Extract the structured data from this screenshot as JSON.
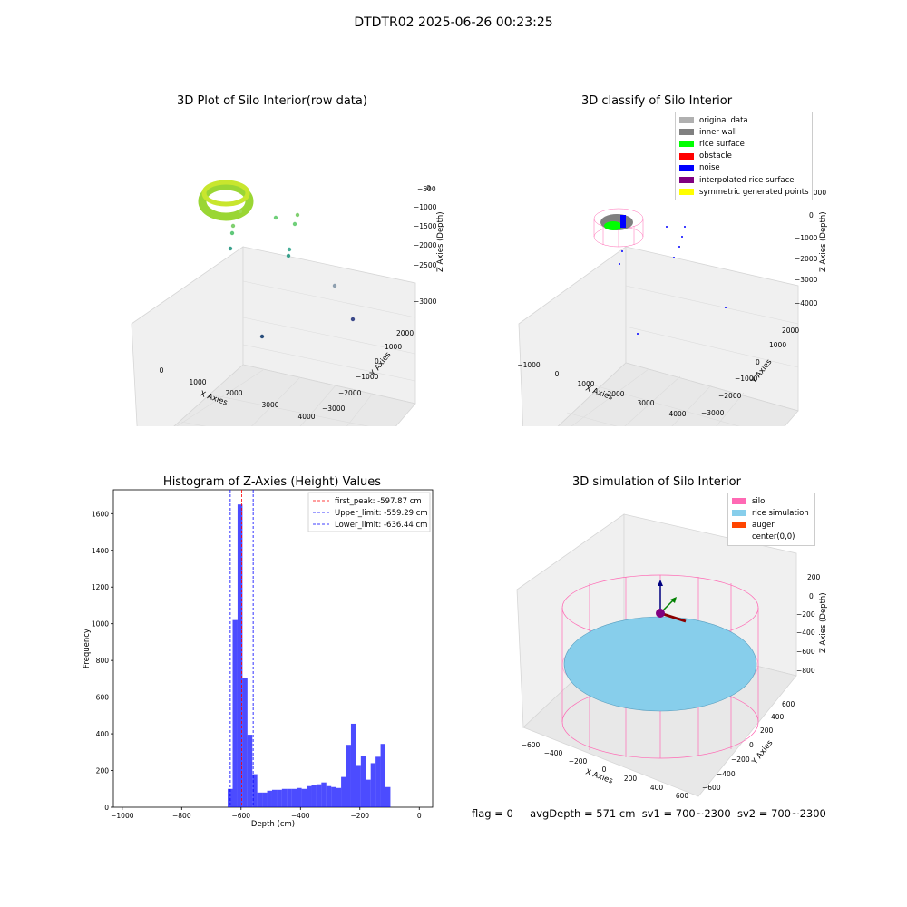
{
  "figure": {
    "title": "DTDTR02 2025-06-26 00:23:25",
    "footer": {
      "flag": "flag = 0",
      "avg_depth": "avgDepth = 571 cm",
      "sv1": "sv1 = 700~2300",
      "sv2": "sv2 = 700~2300"
    }
  },
  "panels": {
    "raw": {
      "title": "3D Plot of Silo Interior(row data)",
      "xlabel": "X Axies",
      "ylabel": "Y Axies",
      "zlabel": "Z Axies (Depth)",
      "x_ticks": [
        "0",
        "1000",
        "2000",
        "3000",
        "4000"
      ],
      "y_ticks": [
        "−3000",
        "−2000",
        "−1000",
        "0",
        "1000",
        "2000"
      ],
      "z_ticks": [
        "−3000",
        "−2500",
        "−2000",
        "−1500",
        "−1000",
        "−500",
        "0"
      ]
    },
    "classify": {
      "title": "3D classify of Silo Interior",
      "xlabel": "X Axies",
      "ylabel": "Y Axies",
      "zlabel": "Z Axies (Depth)",
      "x_ticks": [
        "−1000",
        "0",
        "1000",
        "2000",
        "3000",
        "4000"
      ],
      "y_ticks": [
        "−3000",
        "−2000",
        "−1000",
        "0",
        "1000",
        "2000"
      ],
      "z_ticks": [
        "−4000",
        "−3000",
        "−2000",
        "−1000",
        "0",
        "1000"
      ],
      "legend": [
        {
          "label": "original data",
          "color": "#b0b0b0"
        },
        {
          "label": "inner wall",
          "color": "#808080"
        },
        {
          "label": "rice surface",
          "color": "#00ff00"
        },
        {
          "label": "obstacle",
          "color": "#ff0000"
        },
        {
          "label": "noise",
          "color": "#0000ff"
        },
        {
          "label": "interpolated rice surface",
          "color": "#800080"
        },
        {
          "label": "symmetric generated points",
          "color": "#ffff00"
        }
      ]
    },
    "simulation": {
      "title": "3D simulation of Silo Interior",
      "xlabel": "X Axies",
      "ylabel": "Y Axies",
      "zlabel": "Z Axies (Depth)",
      "x_ticks": [
        "−600",
        "−400",
        "−200",
        "0",
        "200",
        "400",
        "600"
      ],
      "y_ticks": [
        "−600",
        "−400",
        "−200",
        "0",
        "200",
        "400",
        "600"
      ],
      "z_ticks": [
        "−800",
        "−600",
        "−400",
        "−200",
        "0",
        "200"
      ],
      "legend": [
        {
          "label": "silo",
          "color": "#ff69b4"
        },
        {
          "label": "rice simulation",
          "color": "#87ceeb"
        },
        {
          "label": "auger",
          "color": "#ff4500"
        },
        {
          "label": "center(0,0)",
          "color": "#ffffff"
        }
      ]
    }
  },
  "chart_data": [
    {
      "type": "bar",
      "title": "Histogram of Z-Axies (Height) Values",
      "xlabel": "Depth (cm)",
      "ylabel": "Frequency",
      "xlim": [
        -1030,
        45
      ],
      "ylim": [
        0,
        1730
      ],
      "x_ticks": [
        -1000,
        -800,
        -600,
        -400,
        -200,
        0
      ],
      "y_ticks": [
        0,
        200,
        400,
        600,
        800,
        1000,
        1200,
        1400,
        1600
      ],
      "bar_color": "#0000ff",
      "bin_width": 16.6,
      "bin_left_edges": [
        -645,
        -628.4,
        -611.8,
        -595.2,
        -578.6,
        -562,
        -545.4,
        -528.8,
        -512.2,
        -495.6,
        -479,
        -462.4,
        -445.8,
        -429.2,
        -412.6,
        -396,
        -379.4,
        -362.8,
        -346.2,
        -329.6,
        -313,
        -296.4,
        -279.8,
        -263.2,
        -246.6,
        -230,
        -213.4,
        -196.8,
        -180.2,
        -163.6,
        -147,
        -130.4,
        -113.8,
        -97.2,
        -80.6,
        -64,
        -47.4,
        -30.8,
        -14.2
      ],
      "values": [
        100,
        1020,
        1650,
        705,
        395,
        180,
        80,
        80,
        90,
        95,
        95,
        100,
        100,
        100,
        105,
        100,
        115,
        120,
        125,
        135,
        115,
        110,
        105,
        165,
        340,
        455,
        230,
        280,
        150,
        240,
        275,
        345,
        110,
        0,
        0,
        0,
        0,
        0,
        0
      ],
      "lines": [
        {
          "name": "first_peak",
          "label": "first_peak: -597.87 cm",
          "x": -597.87,
          "color": "#ff0000"
        },
        {
          "name": "Upper_limit",
          "label": "Upper_limit: -559.29 cm",
          "x": -559.29,
          "color": "#0000ff"
        },
        {
          "name": "Lower_limit",
          "label": "Lower_limit: -636.44 cm",
          "x": -636.44,
          "color": "#0000ff"
        }
      ],
      "legend_position": "upper right"
    },
    {
      "type": "scatter",
      "title": "3D Plot of Silo Interior(row data)",
      "dimension": "3d",
      "xlim": [
        -600,
        4000
      ],
      "ylim": [
        -3000,
        2500
      ],
      "zlim": [
        -3200,
        200
      ],
      "note": "dense green ring of points at x≈-300..300, y≈-300..300, z≈-600..-200, plus scattered outliers",
      "outliers": [
        {
          "x": 3000,
          "y": 2000,
          "z": -3000
        },
        {
          "x": 3500,
          "y": 1500,
          "z": -2500
        },
        {
          "x": 2500,
          "y": 500,
          "z": -1500
        },
        {
          "x": 2000,
          "y": 1000,
          "z": -1200
        },
        {
          "x": 1800,
          "y": 0,
          "z": -900
        }
      ]
    }
  ]
}
